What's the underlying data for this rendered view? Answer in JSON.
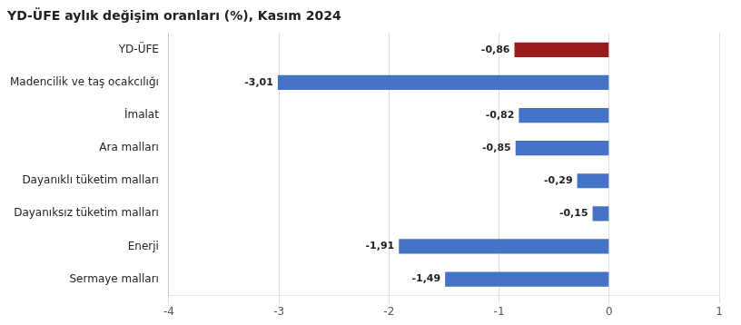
{
  "chart_data": {
    "type": "bar",
    "orientation": "horizontal",
    "title": "YD-ÜFE aylık değişim oranları (%), Kasım 2024",
    "categories": [
      "Sermaye malları",
      "Enerji",
      "Dayanıksız tüketim malları",
      "Dayanıklı tüketim malları",
      "Ara malları",
      "İmalat",
      "Madencilik ve taş ocakcılığı",
      "YD-ÜFE"
    ],
    "values": [
      -1.49,
      -1.91,
      -0.15,
      -0.29,
      -0.85,
      -0.82,
      -3.01,
      -0.86
    ],
    "value_labels": [
      "-1,49",
      "-1,91",
      "-0,15",
      "-0,29",
      "-0,85",
      "-0,82",
      "-3,01",
      "-0,86"
    ],
    "data_labels": true,
    "colors": [
      "#4472C4",
      "#4472C4",
      "#4472C4",
      "#4472C4",
      "#4472C4",
      "#4472C4",
      "#4472C4",
      "#9B1C1C"
    ],
    "xlim": [
      -4,
      1
    ],
    "xticks": [
      -4,
      -3,
      -2,
      -1,
      0,
      1
    ],
    "grid": true
  }
}
